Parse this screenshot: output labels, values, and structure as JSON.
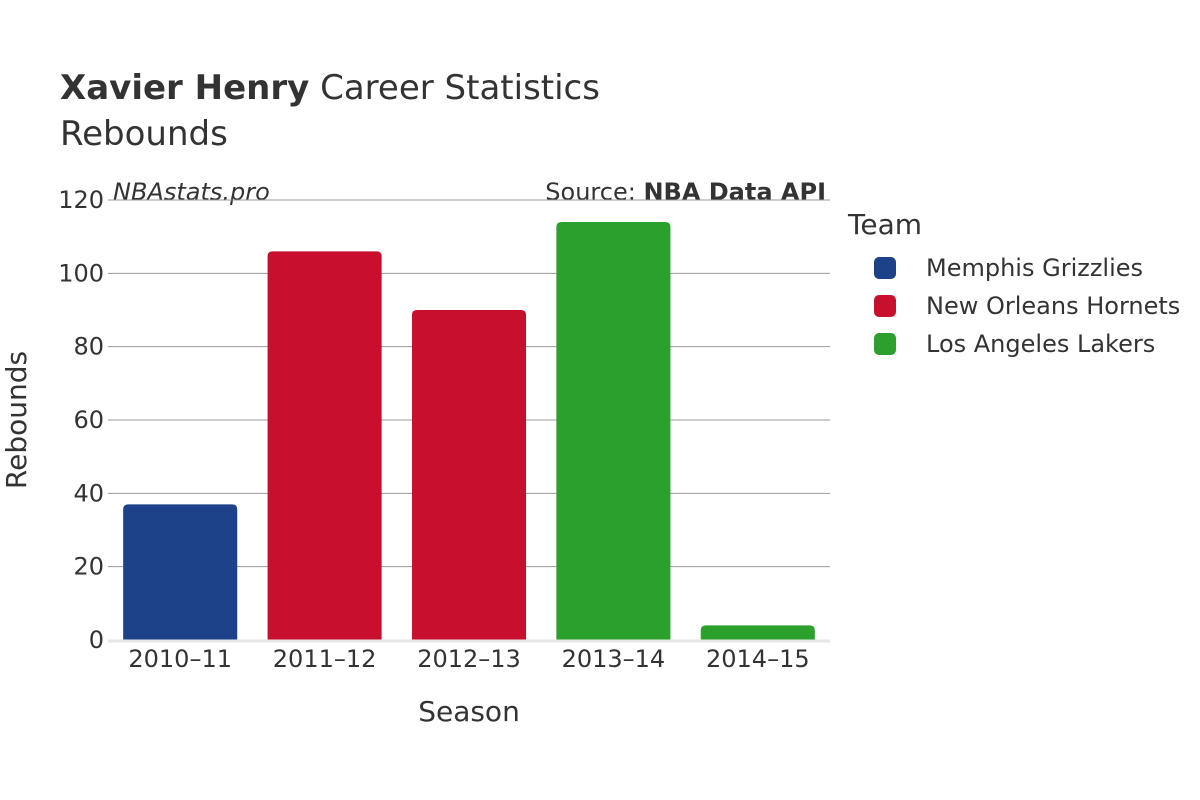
{
  "header": {
    "player_name": "Xavier Henry",
    "title_rest": "Career Statistics",
    "subtitle": "Rebounds",
    "watermark": "NBAstats.pro",
    "source_prefix": "Source: ",
    "source_name": "NBA Data API"
  },
  "legend": {
    "title": "Team",
    "items": [
      {
        "label": "Memphis Grizzlies",
        "color": "#1d428a"
      },
      {
        "label": "New Orleans Hornets",
        "color": "#c8102e"
      },
      {
        "label": "Los Angeles Lakers",
        "color": "#2ca02c"
      }
    ]
  },
  "chart_data": {
    "type": "bar",
    "title": "Xavier Henry Career Statistics",
    "subtitle": "Rebounds",
    "xlabel": "Season",
    "ylabel": "Rebounds",
    "ylim": [
      0,
      120
    ],
    "yticks": [
      0,
      20,
      40,
      60,
      80,
      100,
      120
    ],
    "grid": true,
    "legend_position": "right",
    "categories": [
      "2010–11",
      "2011–12",
      "2012–13",
      "2013–14",
      "2014–15"
    ],
    "values": [
      37,
      106,
      90,
      114,
      4
    ],
    "teams": [
      "Memphis Grizzlies",
      "New Orleans Hornets",
      "New Orleans Hornets",
      "Los Angeles Lakers",
      "Los Angeles Lakers"
    ],
    "colors": [
      "#1d428a",
      "#c8102e",
      "#c8102e",
      "#2ca02c",
      "#2ca02c"
    ]
  }
}
